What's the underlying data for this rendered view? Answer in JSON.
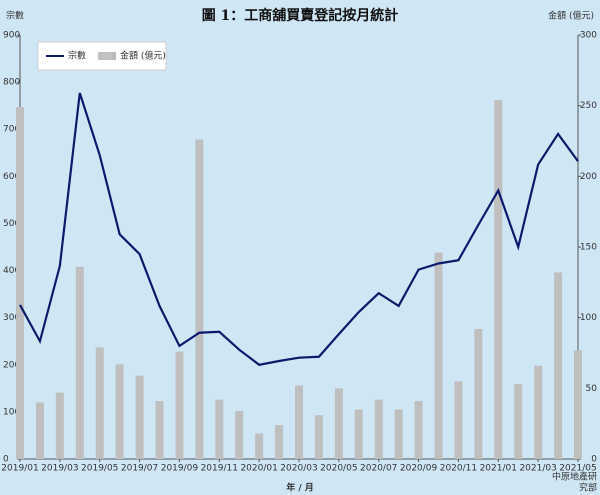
{
  "chart_data": {
    "type": "bar-line",
    "title": "圖 1：工商舖買賣登記按月統計",
    "y_label": "宗數",
    "y2_label": "金額 (億元)",
    "x_label": "年 / 月",
    "source": [
      "中原地產研",
      "究部"
    ],
    "categories": [
      "2019/01",
      null,
      "2019/03",
      null,
      "2019/05",
      null,
      "2019/07",
      null,
      "2019/09",
      null,
      "2019/11",
      null,
      "2020/01",
      null,
      "2020/03",
      null,
      "2020/05",
      null,
      "2020/07",
      null,
      "2020/09",
      null,
      "2020/11",
      null,
      "2021/01",
      null,
      "2021/03",
      null,
      "2021/05"
    ],
    "series": [
      {
        "name": "宗數",
        "type": "line",
        "axis": "y",
        "color": "#0d1a6b",
        "values": [
          327,
          250,
          410,
          777,
          645,
          477,
          435,
          325,
          240,
          268,
          270,
          232,
          200,
          208,
          215,
          217,
          265,
          312,
          352,
          325,
          402,
          415,
          422,
          497,
          570,
          450,
          625,
          690,
          632
        ]
      },
      {
        "name": "金額 (億元)",
        "type": "bar",
        "axis": "y2",
        "color": "#bfbfbf",
        "values": [
          249,
          40,
          47,
          136,
          79,
          67,
          59,
          41,
          76,
          226,
          42,
          34,
          18,
          24,
          52,
          31,
          50,
          35,
          42,
          35,
          41,
          146,
          55,
          92,
          254,
          53,
          66,
          132,
          77
        ]
      }
    ],
    "ylim": [
      0,
      900
    ],
    "yticks": [
      0,
      100,
      200,
      300,
      400,
      500,
      600,
      700,
      800,
      900
    ],
    "y2lim": [
      0,
      300
    ],
    "y2ticks": [
      0,
      50,
      100,
      150,
      200,
      250,
      300
    ],
    "legend": "top-left",
    "background": "#cfe6f5"
  }
}
